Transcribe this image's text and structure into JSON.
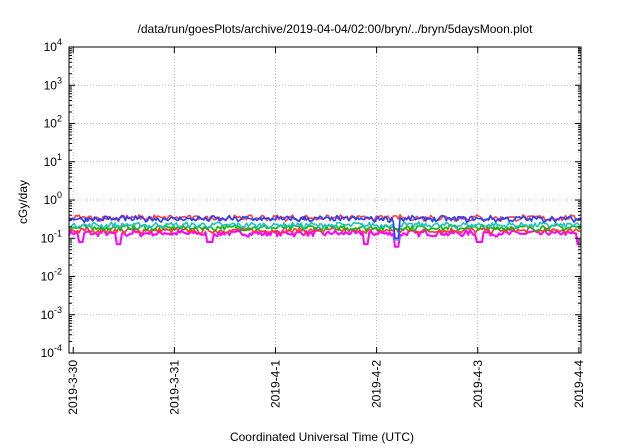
{
  "chart_data": {
    "type": "line",
    "title": "/data/run/goesPlots/archive/2019-04-04/02:00/bryn/../bryn/5daysMoon.plot",
    "xlabel": "Coordinated Universal Time (UTC)",
    "ylabel": "cGy/day",
    "yscale": "log",
    "ylim": [
      0.0001,
      10000
    ],
    "xlim": [
      "2019-03-29T23:00",
      "2019-04-04T00:30"
    ],
    "grid": true,
    "legend": "none",
    "y_ticks": [
      {
        "base": "10",
        "exp": "-4",
        "value": 0.0001
      },
      {
        "base": "10",
        "exp": "-3",
        "value": 0.001
      },
      {
        "base": "10",
        "exp": "-2",
        "value": 0.01
      },
      {
        "base": "10",
        "exp": "-1",
        "value": 0.1
      },
      {
        "base": "10",
        "exp": "0",
        "value": 1
      },
      {
        "base": "10",
        "exp": "1",
        "value": 10
      },
      {
        "base": "10",
        "exp": "2",
        "value": 100
      },
      {
        "base": "10",
        "exp": "3",
        "value": 1000
      },
      {
        "base": "10",
        "exp": "4",
        "value": 10000
      }
    ],
    "x_ticks": [
      {
        "label": "2019-3-30",
        "value": "2019-03-30T00:00"
      },
      {
        "label": "2019-3-31",
        "value": "2019-03-31T00:00"
      },
      {
        "label": "2019-4-1",
        "value": "2019-04-01T00:00"
      },
      {
        "label": "2019-4-2",
        "value": "2019-04-02T00:00"
      },
      {
        "label": "2019-4-3",
        "value": "2019-04-03T00:00"
      },
      {
        "label": "2019-4-4",
        "value": "2019-04-04T00:00"
      }
    ],
    "series": [
      {
        "color": "#ff00ff",
        "level": 0.135,
        "dips": [
          {
            "t": "2019-03-30T01:48",
            "min": 0.08
          },
          {
            "t": "2019-03-30T10:48",
            "min": 0.07
          },
          {
            "t": "2019-03-31T08:24",
            "min": 0.08
          },
          {
            "t": "2019-04-01T21:36",
            "min": 0.07
          },
          {
            "t": "2019-04-02T04:48",
            "min": 0.06
          },
          {
            "t": "2019-04-03T00:24",
            "min": 0.08
          },
          {
            "t": "2019-04-04T00:00",
            "min": 0.07
          }
        ]
      },
      {
        "color": "#ff3333",
        "level": 0.16,
        "dips": []
      },
      {
        "color": "#00c000",
        "level": 0.19,
        "dips": []
      },
      {
        "color": "#20c0c0",
        "level": 0.22,
        "dips": [
          {
            "t": "2019-04-02T04:48",
            "min": 0.09
          }
        ]
      },
      {
        "color": "#ff4040",
        "level": 0.34,
        "dips": []
      },
      {
        "color": "#2040ff",
        "level": 0.32,
        "dips": [
          {
            "t": "2019-04-02T04:48",
            "min": 0.1
          }
        ]
      }
    ]
  }
}
